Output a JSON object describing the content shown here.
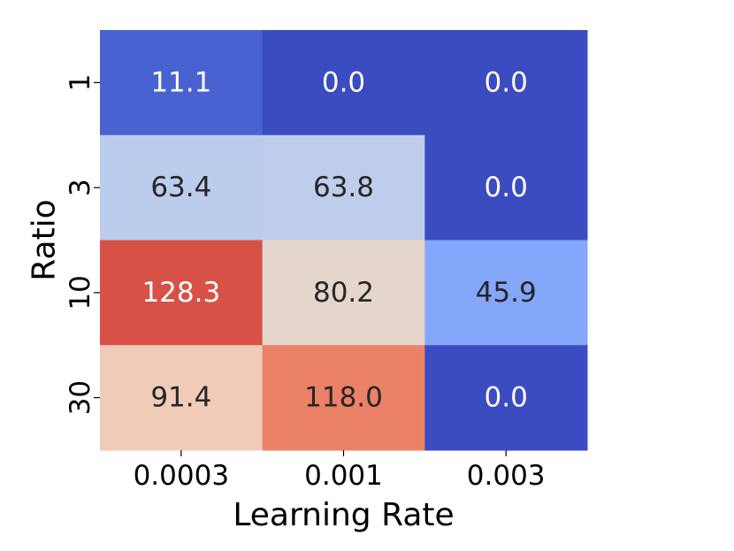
{
  "chart_data": {
    "type": "heatmap",
    "title": "",
    "xlabel": "Learning Rate",
    "ylabel": "Ratio",
    "x_categories": [
      "0.0003",
      "0.001",
      "0.003"
    ],
    "y_categories": [
      "1",
      "3",
      "10",
      "30"
    ],
    "values": [
      [
        11.1,
        0.0,
        0.0
      ],
      [
        63.4,
        63.8,
        0.0
      ],
      [
        128.3,
        80.2,
        45.9
      ],
      [
        91.4,
        118.0,
        0.0
      ]
    ],
    "value_labels": [
      [
        "11.1",
        "0.0",
        "0.0"
      ],
      [
        "63.4",
        "63.8",
        "0.0"
      ],
      [
        "128.3",
        "80.2",
        "45.9"
      ],
      [
        "91.4",
        "118.0",
        "0.0"
      ]
    ],
    "colormap": "coolwarm",
    "vmin": 0,
    "vmax": 140,
    "colorbar": false,
    "grid": false
  }
}
